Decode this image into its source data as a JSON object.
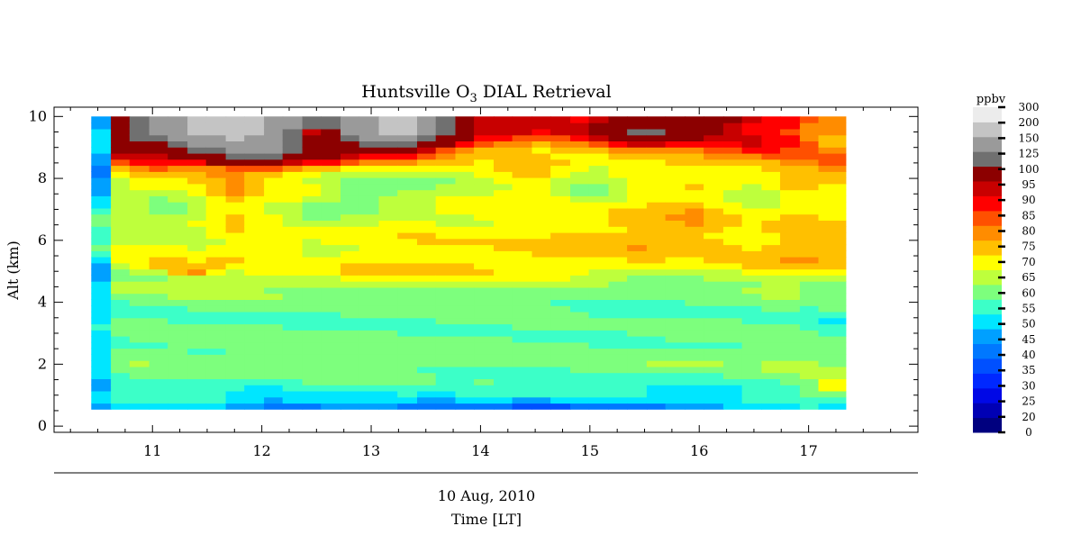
{
  "chart_data": {
    "type": "heatmap",
    "title": "Huntsville O",
    "title_subscript": "3",
    "title_suffix": " DIAL Retrieval",
    "ylabel": "Alt (km)",
    "xlabel": "Time [LT]",
    "date_label": "10 Aug, 2010",
    "xlim": [
      10.1,
      18.0
    ],
    "ylim": [
      -0.2,
      10.3
    ],
    "x_ticks": [
      11,
      12,
      13,
      14,
      15,
      16,
      17
    ],
    "y_ticks": [
      0,
      2,
      4,
      6,
      8,
      10
    ],
    "colorbar": {
      "unit": "ppbv",
      "labels": [
        "0",
        "20",
        "25",
        "30",
        "35",
        "40",
        "45",
        "50",
        "55",
        "60",
        "65",
        "70",
        "75",
        "80",
        "85",
        "90",
        "95",
        "100",
        "125",
        "150",
        "200",
        "300"
      ],
      "colors": [
        "#00007f",
        "#0000b4",
        "#0008e6",
        "#0028ff",
        "#0050ff",
        "#0078ff",
        "#00a0ff",
        "#00e6ff",
        "#3cffc8",
        "#7dff7d",
        "#beff3c",
        "#ffff00",
        "#ffc000",
        "#ff8c00",
        "#ff5000",
        "#ff0000",
        "#c80000",
        "#8c0000",
        "#707070",
        "#9a9a9a",
        "#c4c4c4",
        "#ececec"
      ]
    },
    "time_bins": [
      10.5,
      10.68,
      10.85,
      11.03,
      11.2,
      11.38,
      11.55,
      11.73,
      11.9,
      12.08,
      12.25,
      12.43,
      12.6,
      12.78,
      12.95,
      13.13,
      13.3,
      13.48,
      13.65,
      13.83,
      14.0,
      14.18,
      14.35,
      14.53,
      14.7,
      14.88,
      15.05,
      15.23,
      15.4,
      15.58,
      15.75,
      15.93,
      16.1,
      16.28,
      16.45,
      16.63,
      16.8,
      16.98,
      17.15,
      17.4
    ],
    "profiles": [
      {
        "t": 10.6,
        "levels": [
          [
            0.55,
            48
          ],
          [
            1.0,
            50
          ],
          [
            2.0,
            52
          ],
          [
            3.0,
            54
          ],
          [
            4.0,
            52
          ],
          [
            5.2,
            48
          ],
          [
            5.6,
            58
          ],
          [
            6.5,
            62
          ],
          [
            7.2,
            55
          ],
          [
            8.2,
            40
          ],
          [
            8.5,
            48
          ],
          [
            9.5,
            52
          ],
          [
            10.0,
            50
          ]
        ]
      },
      {
        "t": 10.78,
        "levels": [
          [
            0.55,
            52
          ],
          [
            1.0,
            58
          ],
          [
            2.0,
            63
          ],
          [
            3.5,
            60
          ],
          [
            4.0,
            61
          ],
          [
            4.8,
            67
          ],
          [
            5.5,
            72
          ],
          [
            6.7,
            68
          ],
          [
            8.0,
            70
          ],
          [
            8.3,
            78
          ],
          [
            8.6,
            96
          ],
          [
            9.4,
            130
          ]
        ]
      },
      {
        "t": 11.1,
        "levels": [
          [
            0.55,
            50
          ],
          [
            0.9,
            58
          ],
          [
            2.0,
            63
          ],
          [
            3.5,
            60
          ],
          [
            4.0,
            62
          ],
          [
            4.8,
            66
          ],
          [
            5.2,
            78
          ],
          [
            5.6,
            72
          ],
          [
            7.0,
            64
          ],
          [
            8.0,
            72
          ],
          [
            8.5,
            95
          ],
          [
            9.0,
            100
          ],
          [
            9.5,
            160
          ]
        ]
      },
      {
        "t": 11.45,
        "levels": [
          [
            0.55,
            50
          ],
          [
            0.9,
            58
          ],
          [
            2.0,
            63
          ],
          [
            3.5,
            60
          ],
          [
            4.0,
            63
          ],
          [
            4.8,
            70
          ],
          [
            5.0,
            84
          ],
          [
            5.4,
            72
          ],
          [
            7.0,
            66
          ],
          [
            8.0,
            74
          ],
          [
            8.5,
            90
          ],
          [
            9.0,
            130
          ],
          [
            9.5,
            210
          ]
        ]
      },
      {
        "t": 11.8,
        "levels": [
          [
            0.55,
            45
          ],
          [
            0.9,
            55
          ],
          [
            2.0,
            63
          ],
          [
            3.5,
            60
          ],
          [
            4.2,
            64
          ],
          [
            5.0,
            70
          ],
          [
            5.5,
            74
          ],
          [
            6.0,
            72
          ],
          [
            7.8,
            80
          ],
          [
            8.3,
            86
          ],
          [
            8.8,
            140
          ],
          [
            9.4,
            220
          ]
        ]
      },
      {
        "t": 12.15,
        "levels": [
          [
            0.55,
            38
          ],
          [
            0.9,
            52
          ],
          [
            2.0,
            63
          ],
          [
            3.5,
            60
          ],
          [
            4.3,
            64
          ],
          [
            5.0,
            72
          ],
          [
            5.8,
            74
          ],
          [
            6.5,
            70
          ],
          [
            8.0,
            74
          ],
          [
            8.4,
            90
          ],
          [
            8.9,
            150
          ],
          [
            9.4,
            200
          ]
        ]
      },
      {
        "t": 12.55,
        "levels": [
          [
            0.55,
            40
          ],
          [
            0.9,
            55
          ],
          [
            2.0,
            63
          ],
          [
            3.5,
            58
          ],
          [
            4.3,
            64
          ],
          [
            5.0,
            72
          ],
          [
            6.0,
            70
          ],
          [
            7.0,
            64
          ],
          [
            8.2,
            72
          ],
          [
            8.5,
            90
          ],
          [
            8.8,
            125
          ],
          [
            9.5,
            90
          ],
          [
            9.8,
            130
          ]
        ]
      },
      {
        "t": 12.95,
        "levels": [
          [
            0.55,
            45
          ],
          [
            0.9,
            55
          ],
          [
            2.0,
            63
          ],
          [
            3.5,
            60
          ],
          [
            4.5,
            66
          ],
          [
            5.0,
            74
          ],
          [
            6.5,
            70
          ],
          [
            7.5,
            60
          ],
          [
            8.2,
            68
          ],
          [
            8.5,
            80
          ],
          [
            9.0,
            110
          ],
          [
            9.5,
            180
          ]
        ]
      },
      {
        "t": 13.35,
        "levels": [
          [
            0.55,
            42
          ],
          [
            0.9,
            55
          ],
          [
            2.0,
            63
          ],
          [
            3.5,
            60
          ],
          [
            4.5,
            66
          ],
          [
            5.0,
            76
          ],
          [
            6.5,
            72
          ],
          [
            7.5,
            64
          ],
          [
            8.4,
            70
          ],
          [
            8.7,
            90
          ],
          [
            9.2,
            140
          ],
          [
            9.5,
            210
          ]
        ]
      },
      {
        "t": 13.75,
        "levels": [
          [
            0.55,
            40
          ],
          [
            0.9,
            53
          ],
          [
            2.0,
            63
          ],
          [
            3.5,
            60
          ],
          [
            4.5,
            66
          ],
          [
            5.0,
            76
          ],
          [
            6.5,
            72
          ],
          [
            8.0,
            66
          ],
          [
            8.6,
            76
          ],
          [
            9.0,
            95
          ],
          [
            9.4,
            130
          ]
        ]
      },
      {
        "t": 14.1,
        "levels": [
          [
            0.55,
            40
          ],
          [
            0.9,
            55
          ],
          [
            2.0,
            63
          ],
          [
            3.5,
            60
          ],
          [
            4.5,
            66
          ],
          [
            5.1,
            76
          ],
          [
            6.5,
            72
          ],
          [
            7.5,
            70
          ],
          [
            8.5,
            72
          ],
          [
            9.2,
            88
          ],
          [
            9.5,
            96
          ]
        ]
      },
      {
        "t": 14.55,
        "levels": [
          [
            0.55,
            36
          ],
          [
            0.9,
            52
          ],
          [
            2.0,
            63
          ],
          [
            3.5,
            60
          ],
          [
            4.6,
            66
          ],
          [
            5.1,
            76
          ],
          [
            6.5,
            74
          ],
          [
            7.0,
            72
          ],
          [
            8.0,
            76
          ],
          [
            8.5,
            80
          ],
          [
            9.0,
            76
          ],
          [
            9.5,
            92
          ],
          [
            9.8,
            100
          ]
        ]
      },
      {
        "t": 15.05,
        "levels": [
          [
            0.55,
            38
          ],
          [
            0.9,
            52
          ],
          [
            2.0,
            63
          ],
          [
            3.5,
            58
          ],
          [
            4.6,
            64
          ],
          [
            5.1,
            74
          ],
          [
            6.0,
            78
          ],
          [
            7.0,
            70
          ],
          [
            8.0,
            62
          ],
          [
            8.5,
            70
          ],
          [
            9.0,
            80
          ],
          [
            9.5,
            96
          ]
        ]
      },
      {
        "t": 15.55,
        "levels": [
          [
            0.55,
            40
          ],
          [
            0.9,
            52
          ],
          [
            2.0,
            63
          ],
          [
            3.5,
            60
          ],
          [
            4.6,
            60
          ],
          [
            5.2,
            74
          ],
          [
            6.0,
            80
          ],
          [
            7.0,
            76
          ],
          [
            8.0,
            72
          ],
          [
            8.5,
            76
          ],
          [
            9.0,
            86
          ],
          [
            9.5,
            130
          ]
        ]
      },
      {
        "t": 16.05,
        "levels": [
          [
            0.55,
            42
          ],
          [
            0.9,
            52
          ],
          [
            2.0,
            63
          ],
          [
            3.5,
            60
          ],
          [
            4.5,
            62
          ],
          [
            5.2,
            72
          ],
          [
            6.0,
            78
          ],
          [
            7.0,
            80
          ],
          [
            8.0,
            72
          ],
          [
            8.5,
            78
          ],
          [
            9.0,
            84
          ],
          [
            9.5,
            110
          ]
        ]
      },
      {
        "t": 16.55,
        "levels": [
          [
            0.55,
            48
          ],
          [
            0.9,
            55
          ],
          [
            2.0,
            63
          ],
          [
            3.5,
            60
          ],
          [
            4.5,
            64
          ],
          [
            5.2,
            76
          ],
          [
            6.0,
            74
          ],
          [
            7.0,
            70
          ],
          [
            7.6,
            66
          ],
          [
            8.2,
            74
          ],
          [
            8.7,
            84
          ],
          [
            9.2,
            96
          ]
        ]
      },
      {
        "t": 16.9,
        "levels": [
          [
            0.55,
            50
          ],
          [
            0.9,
            56
          ],
          [
            2.0,
            66
          ],
          [
            3.5,
            60
          ],
          [
            4.5,
            66
          ],
          [
            5.2,
            78
          ],
          [
            6.0,
            80
          ],
          [
            6.8,
            76
          ],
          [
            7.5,
            72
          ],
          [
            8.2,
            78
          ],
          [
            8.8,
            86
          ],
          [
            9.4,
            92
          ]
        ]
      },
      {
        "t": 17.2,
        "levels": [
          [
            0.55,
            52
          ],
          [
            1.2,
            70
          ],
          [
            2.2,
            64
          ],
          [
            3.0,
            58
          ],
          [
            3.5,
            56
          ],
          [
            4.5,
            64
          ],
          [
            5.5,
            80
          ],
          [
            6.5,
            76
          ],
          [
            7.5,
            72
          ],
          [
            8.0,
            78
          ],
          [
            8.6,
            84
          ],
          [
            9.3,
            80
          ]
        ]
      }
    ]
  }
}
